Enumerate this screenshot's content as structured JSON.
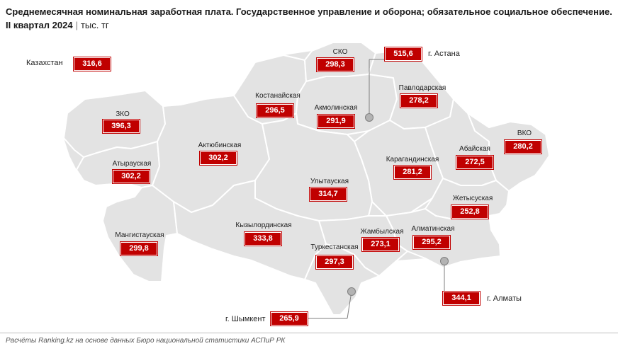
{
  "title": "Среднемесячная номинальная заработная плата. Государственное управление и оборона; обязательное социальное обеспечение.",
  "period": "II квартал 2024",
  "unit": "тыс. тг",
  "footer": "Расчёты Ranking.kz на основе данных Бюро национальной статистики АСПиР РК",
  "colors": {
    "value_box": "#c00000",
    "region_fill": "#e3e3e3",
    "region_border": "#ffffff",
    "city_marker": "#b3b3b3"
  },
  "country": {
    "name": "Казахстан",
    "value": "316,6"
  },
  "regions": [
    {
      "name": "СКО",
      "value": "298,3"
    },
    {
      "name": "Костанайская",
      "value": "296,5"
    },
    {
      "name": "Акмолинская",
      "value": "291,9"
    },
    {
      "name": "Павлодарская",
      "value": "278,2"
    },
    {
      "name": "ЗКО",
      "value": "396,3"
    },
    {
      "name": "ВКО",
      "value": "280,2"
    },
    {
      "name": "Актюбинская",
      "value": "302,2"
    },
    {
      "name": "Атырауская",
      "value": "302,2"
    },
    {
      "name": "Карагандинская",
      "value": "281,2"
    },
    {
      "name": "Абайская",
      "value": "272,5"
    },
    {
      "name": "Улытауская",
      "value": "314,7"
    },
    {
      "name": "Жетысуская",
      "value": "252,8"
    },
    {
      "name": "Мангистауская",
      "value": "299,8"
    },
    {
      "name": "Кызылординская",
      "value": "333,8"
    },
    {
      "name": "Жамбылская",
      "value": "273,1"
    },
    {
      "name": "Алматинская",
      "value": "295,2"
    },
    {
      "name": "Туркестанская",
      "value": "297,3"
    }
  ],
  "cities": [
    {
      "name": "г. Астана",
      "value": "515,6"
    },
    {
      "name": "г. Алматы",
      "value": "344,1"
    },
    {
      "name": "г. Шымкент",
      "value": "265,9"
    }
  ]
}
